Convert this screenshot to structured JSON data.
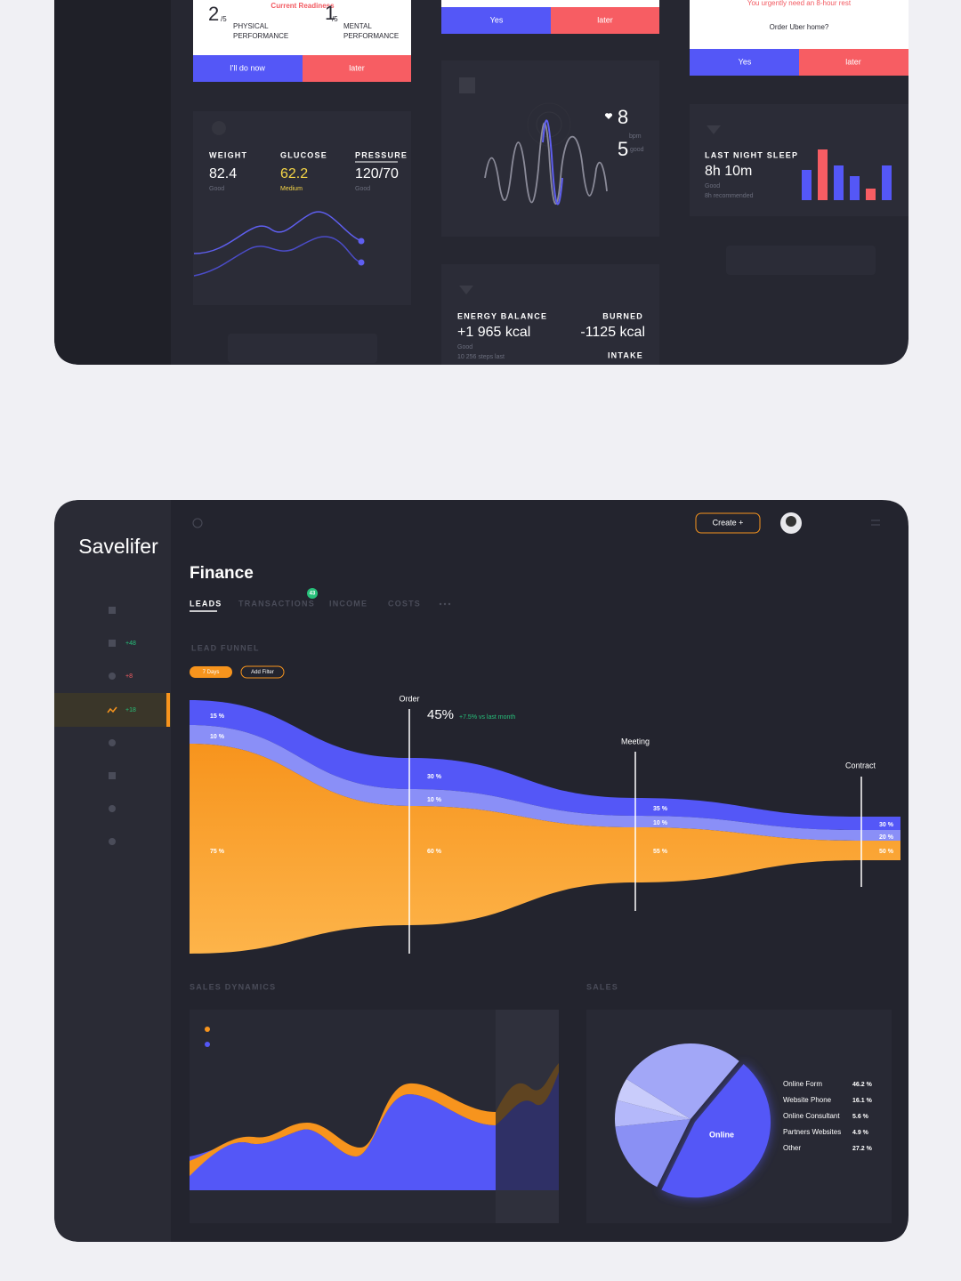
{
  "top": {
    "readiness": {
      "title": "Current Readiness",
      "physical_score": "2",
      "physical_denom": "/5",
      "physical_label_1": "PHYSICAL",
      "physical_label_2": "PERFORMANCE",
      "mental_score": "1",
      "mental_denom": "/5",
      "mental_label_1": "MENTAL",
      "mental_label_2": "PERFORMANCE",
      "primary": "I'll do now",
      "secondary": "later"
    },
    "prompt": {
      "primary": "Yes",
      "secondary": "later"
    },
    "uber": {
      "message": "You urgently need an 8-hour rest",
      "question": "Order Uber home?",
      "primary": "Yes",
      "secondary": "later"
    },
    "vitals": {
      "weight_label": "WEIGHT",
      "weight": "82.4",
      "weight_status": "Good",
      "glucose_label": "GLUCOSE",
      "glucose": "62.2",
      "glucose_status": "Medium",
      "pressure_label": "PRESSURE",
      "pressure": "120/70",
      "pressure_status": "Good"
    },
    "heart": {
      "bpm": "8",
      "bpm_unit": "bpm",
      "score": "5",
      "score_label": "good"
    },
    "sleep": {
      "title": "LAST NIGHT SLEEP",
      "value": "8h 10m",
      "status": "Good",
      "note": "8h recommended"
    },
    "energy": {
      "title": "ENERGY BALANCE",
      "value": "+1 965 kcal",
      "status": "Good",
      "steps": "10 256 steps last",
      "burned_label": "BURNED",
      "burned": "-1125 kcal",
      "intake_label": "INTAKE"
    }
  },
  "bottom": {
    "brand": "Savelifer",
    "create": "Create +",
    "sidebar_badges": [
      "+48",
      "+8",
      "+18"
    ],
    "page_title": "Finance",
    "tabs": [
      "LEADS",
      "TRANSACTIONS",
      "INCOME",
      "COSTS"
    ],
    "tab_badge": "43",
    "section": "LEAD FUNNEL",
    "filters": [
      "7 Days",
      "Add Filter"
    ],
    "funnel": {
      "headline": "45%",
      "change": "+7.5% vs last month",
      "start_labels": [
        "15 %",
        "10 %",
        "75 %"
      ],
      "stages": [
        {
          "name": "Order",
          "labels": [
            "30 %",
            "10 %",
            "60 %"
          ]
        },
        {
          "name": "Meeting",
          "labels": [
            "35 %",
            "10 %",
            "55 %"
          ]
        },
        {
          "name": "Contract",
          "labels": [
            "30 %",
            "20 %",
            "50 %"
          ]
        }
      ]
    },
    "sales_dynamics_title": "SALES DYNAMICS",
    "sales_title": "SALES",
    "sales": {
      "pie_label": "Online",
      "items": [
        {
          "name": "Online Form",
          "value": 46.2,
          "label": "46.2 %",
          "color": "#5457f7"
        },
        {
          "name": "Website Phone",
          "value": 16.1,
          "label": "16.1 %",
          "color": "#8a90f4"
        },
        {
          "name": "Online Consultant",
          "value": 5.6,
          "label": "5.6 %",
          "color": "#b4b8fa"
        },
        {
          "name": "Partners Websites",
          "value": 4.9,
          "label": "4.9 %",
          "color": "#c9ccfb"
        },
        {
          "name": "Other",
          "value": 27.2,
          "label": "27.2 %",
          "color": "#a2a7f7"
        }
      ]
    }
  }
}
